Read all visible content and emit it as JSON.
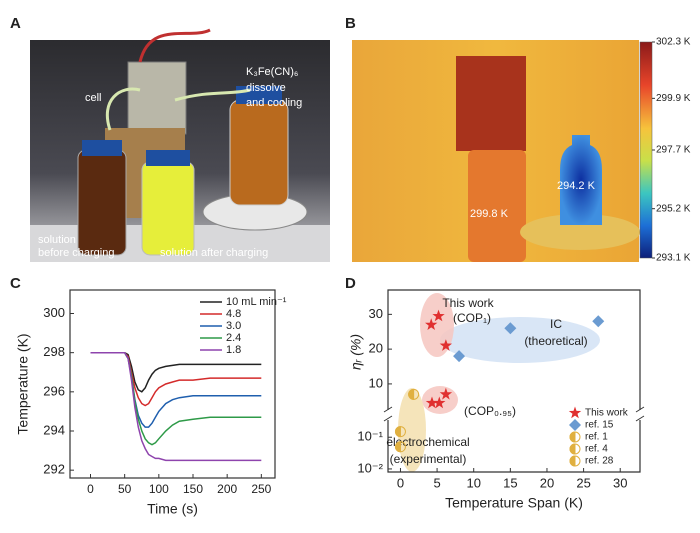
{
  "panel_labels": [
    "A",
    "B",
    "C",
    "D"
  ],
  "photo": {
    "labels": [
      "cell",
      "K₃Fe(CN)₆",
      "dissolve",
      "and cooling",
      "solution",
      "before charging",
      "solution after charging"
    ]
  },
  "thermal": {
    "labels": [
      "299.8 K",
      "294.2 K"
    ],
    "colorbar": {
      "lim": [
        293.1,
        302.3
      ],
      "ticks": [
        {
          "value": 302.3,
          "label": "302.3 K"
        },
        {
          "value": 299.9,
          "label": "299.9 K"
        },
        {
          "value": 297.7,
          "label": "297.7 K"
        },
        {
          "value": 295.2,
          "label": "295.2 K"
        },
        {
          "value": 293.1,
          "label": "293.1 K"
        }
      ]
    }
  },
  "chart_data": [
    {
      "type": "line",
      "xlabel": "Time (s)",
      "ylabel": "Temperature (K)",
      "x": [
        0,
        25,
        50,
        55,
        60,
        65,
        70,
        75,
        80,
        85,
        90,
        95,
        100,
        110,
        120,
        130,
        150,
        175,
        200,
        225,
        250
      ],
      "xlim": [
        -30,
        270
      ],
      "xticks": [
        0,
        50,
        100,
        150,
        200,
        250
      ],
      "ylim": [
        291.6,
        301.2
      ],
      "yticks": [
        292,
        294,
        296,
        298,
        300
      ],
      "series": [
        {
          "name": "10 mL min⁻¹",
          "color": "#222222",
          "values": [
            298,
            298,
            298,
            297.9,
            297.3,
            296.5,
            296.1,
            296.0,
            296.2,
            296.6,
            296.9,
            297.1,
            297.2,
            297.3,
            297.35,
            297.4,
            297.4,
            297.4,
            297.4,
            297.4,
            297.4
          ]
        },
        {
          "name": "4.8",
          "color": "#d42a2a",
          "values": [
            298,
            298,
            298,
            297.8,
            297.0,
            296.2,
            295.7,
            295.4,
            295.3,
            295.4,
            295.7,
            296.0,
            296.2,
            296.4,
            296.5,
            296.6,
            296.6,
            296.7,
            296.7,
            296.7,
            296.7
          ]
        },
        {
          "name": "3.0",
          "color": "#1f5fae",
          "values": [
            298,
            298,
            298,
            297.7,
            296.8,
            295.6,
            294.8,
            294.4,
            294.2,
            294.2,
            294.4,
            294.7,
            295.0,
            295.4,
            295.6,
            295.7,
            295.8,
            295.8,
            295.8,
            295.8,
            295.8
          ]
        },
        {
          "name": "2.4",
          "color": "#2e9a48",
          "values": [
            298,
            298,
            298,
            297.7,
            296.8,
            295.5,
            294.6,
            294.0,
            293.6,
            293.4,
            293.3,
            293.4,
            293.6,
            294.0,
            294.3,
            294.5,
            294.6,
            294.7,
            294.7,
            294.7,
            294.7
          ]
        },
        {
          "name": "1.8",
          "color": "#8e44ad",
          "values": [
            298,
            298,
            298,
            297.7,
            296.6,
            295.2,
            294.2,
            293.5,
            293.1,
            292.8,
            292.7,
            292.6,
            292.6,
            292.5,
            292.5,
            292.5,
            292.5,
            292.5,
            292.5,
            292.5,
            292.5
          ]
        }
      ]
    },
    {
      "type": "scatter",
      "xlabel": "Temperature Span (K)",
      "ylabel": "ηᵣ (%)",
      "xlim": [
        -1.7,
        32.7
      ],
      "xticks": [
        0,
        5,
        10,
        15,
        20,
        25,
        30
      ],
      "ylim": [
        2.5,
        37
      ],
      "yticks": [
        10,
        20,
        30
      ],
      "y2lim": [
        0.008,
        0.35
      ],
      "y2ticks": [
        {
          "value": 0.1,
          "label": "10⁻¹"
        },
        {
          "value": 0.01,
          "label": "10⁻²"
        }
      ],
      "y2_log": true,
      "annotations": [
        "This work",
        "(COP₁)",
        "IC",
        "(theoretical)",
        "(COP₀.₉₅)",
        "electrochemical",
        "(experimental)"
      ],
      "series": [
        {
          "name": "This work",
          "color": "#e03030",
          "marker": "star",
          "x": [
            4.2,
            5.2,
            6.2,
            4.3,
            5.3,
            6.2
          ],
          "values": [
            27,
            29.5,
            21,
            4.5,
            4.5,
            7
          ]
        },
        {
          "name": "ref. 15",
          "color": "#6b9bd1",
          "marker": "diamond",
          "x": [
            8,
            15,
            27
          ],
          "values": [
            18,
            26,
            28
          ]
        },
        {
          "name": "ref. 1",
          "color": "#e0b040",
          "marker": "half",
          "x": [
            0
          ],
          "values": [
            0.15
          ]
        },
        {
          "name": "ref. 4",
          "color": "#e0b040",
          "marker": "half",
          "x": [
            0
          ],
          "values": [
            0.05
          ]
        },
        {
          "name": "ref. 28",
          "color": "#e0b040",
          "marker": "half",
          "x": [
            1.8
          ],
          "values": [
            7
          ]
        }
      ]
    }
  ]
}
